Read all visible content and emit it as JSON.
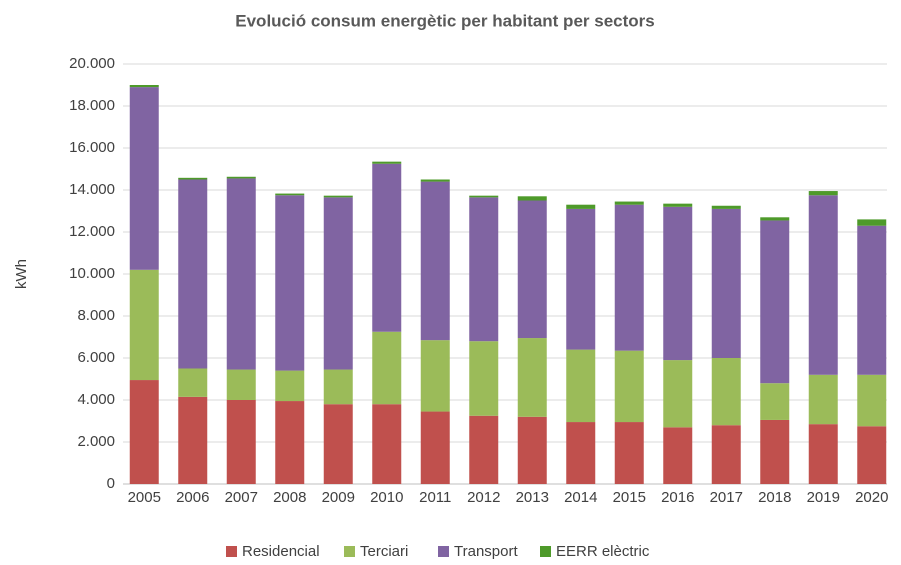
{
  "chart_data": {
    "type": "stacked_bar",
    "title": "Evolució consum energètic per habitant per sectors",
    "y_label": "kWh",
    "categories": [
      "2005",
      "2006",
      "2007",
      "2008",
      "2009",
      "2010",
      "2011",
      "2012",
      "2013",
      "2014",
      "2015",
      "2016",
      "2017",
      "2018",
      "2019",
      "2020"
    ],
    "series": [
      {
        "name": "Residencial",
        "color": "#c0504d",
        "values": [
          4950,
          4150,
          4000,
          3950,
          3800,
          3800,
          3450,
          3250,
          3200,
          2950,
          2950,
          2700,
          2800,
          3050,
          2850,
          2750
        ]
      },
      {
        "name": "Terciari",
        "color": "#9bbb59",
        "values": [
          5250,
          1350,
          1450,
          1450,
          1650,
          3450,
          3400,
          3550,
          3750,
          3450,
          3400,
          3200,
          3200,
          1750,
          2350,
          2450
        ]
      },
      {
        "name": "Transport",
        "color": "#8064a2",
        "values": [
          8700,
          9000,
          9100,
          8350,
          8200,
          8000,
          7550,
          6850,
          6550,
          6700,
          6950,
          7300,
          7100,
          7750,
          8550,
          7100
        ]
      },
      {
        "name": "EERR elèctric",
        "color": "#4e9a2a",
        "values": [
          100,
          80,
          80,
          80,
          80,
          100,
          100,
          80,
          200,
          200,
          150,
          150,
          150,
          150,
          200,
          300
        ]
      }
    ],
    "ylim": [
      0,
      20000
    ],
    "yticks": [
      0,
      {
        "value": 2000,
        "label": "2.000"
      },
      {
        "value": 4000,
        "label": "4.000"
      },
      {
        "value": 6000,
        "label": "6.000"
      },
      {
        "value": 8000,
        "label": "8.000"
      },
      {
        "value": 10000,
        "label": "10.000"
      },
      {
        "value": 12000,
        "label": "12.000"
      },
      {
        "value": 14000,
        "label": "14.000"
      },
      {
        "value": 16000,
        "label": "16.000"
      },
      {
        "value": 18000,
        "label": "18.000"
      },
      {
        "value": 20000,
        "label": "20.000"
      }
    ],
    "grid": true,
    "legend": "bottom"
  }
}
